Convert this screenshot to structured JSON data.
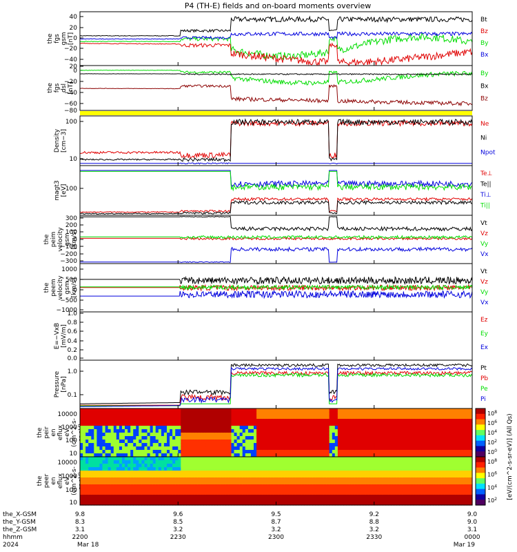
{
  "title": "P4 (TH-E) fields and on-board moments overview",
  "colors": {
    "black": "#000000",
    "red": "#e00000",
    "green": "#00dd00",
    "blue": "#0000dd",
    "darkred": "#8b0000",
    "yellow": "#ffff00"
  },
  "chart_data": {
    "type": "line",
    "time_range": [
      "2024-03-18 22:00",
      "2024-03-19 00:00"
    ],
    "x_ticks": [
      "2200",
      "2230",
      "2300",
      "2330",
      "0000"
    ],
    "date_labels": [
      "Mar 18",
      "Mar 19"
    ],
    "year": "2024",
    "ephemeris": {
      "rows": [
        {
          "label": "the_X-GSM",
          "values": [
            "9.8",
            "9.6",
            "9.5",
            "9.2",
            "9.0"
          ]
        },
        {
          "label": "the_Y-GSM",
          "values": [
            "8.3",
            "8.5",
            "8.7",
            "8.8",
            "9.0"
          ]
        },
        {
          "label": "the_Z-GSM",
          "values": [
            "3.1",
            "3.2",
            "3.2",
            "3.2",
            "3.1"
          ]
        },
        {
          "label": "hhmm",
          "values": [
            "2200",
            "2230",
            "2300",
            "2330",
            "0000"
          ]
        }
      ]
    },
    "panels": [
      {
        "id": "fgs-gsm",
        "ylabel_lines": [
          "the",
          "fgs",
          "gsm",
          "[nT]"
        ],
        "scale": "linear",
        "yrange": [
          -40,
          45
        ],
        "yticks": [
          "40",
          "20",
          "0",
          "−20",
          "−40"
        ],
        "legend": [
          {
            "name": "Bt",
            "color": "#000000"
          },
          {
            "name": "Bz",
            "color": "#e00000"
          },
          {
            "name": "By",
            "color": "#00dd00"
          },
          {
            "name": "Bx",
            "color": "#0000dd"
          }
        ]
      },
      {
        "id": "fgs-dsl",
        "ylabel_lines": [
          "the",
          "fgs",
          "dsl",
          "[nT]"
        ],
        "scale": "linear",
        "yrange": [
          -92,
          22
        ],
        "yticks": [
          "20",
          "0",
          "−20",
          "−40",
          "−60",
          "−80"
        ],
        "legend": [
          {
            "name": "By",
            "color": "#00dd00"
          },
          {
            "name": "Bx",
            "color": "#000000"
          },
          {
            "name": "Bz",
            "color": "#8b0000"
          }
        ]
      },
      {
        "id": "density",
        "ylabel_lines": [
          "Density",
          "[cm−3]"
        ],
        "scale": "log",
        "yrange": [
          8,
          110
        ],
        "yticks": [
          "100",
          "10"
        ],
        "legend": [
          {
            "name": "Ne",
            "color": "#e00000"
          },
          {
            "name": "Ni",
            "color": "#000000"
          },
          {
            "name": "Npot",
            "color": "#0000dd"
          }
        ]
      },
      {
        "id": "temperature",
        "ylabel_lines": [
          "magt3",
          "[eV]"
        ],
        "scale": "log",
        "yrange": [
          30,
          500
        ],
        "yticks": [
          "100"
        ],
        "legend": [
          {
            "name": "Te⊥",
            "color": "#e00000"
          },
          {
            "name": "Te||",
            "color": "#000000"
          },
          {
            "name": "Ti⊥",
            "color": "#0000dd"
          },
          {
            "name": "Ti||",
            "color": "#00dd00"
          }
        ]
      },
      {
        "id": "peim-velocity",
        "ylabel_lines": [
          "the",
          "peim",
          "velocity",
          "gsm",
          "[km/s]"
        ],
        "scale": "linear",
        "yrange": [
          -320,
          320
        ],
        "yticks": [
          "300",
          "200",
          "100",
          "0",
          "−100",
          "−200",
          "−300"
        ],
        "legend": [
          {
            "name": "Vt",
            "color": "#000000"
          },
          {
            "name": "Vz",
            "color": "#e00000"
          },
          {
            "name": "Vy",
            "color": "#00dd00"
          },
          {
            "name": "Vx",
            "color": "#0000dd"
          }
        ]
      },
      {
        "id": "peem-velocity",
        "ylabel_lines": [
          "the",
          "peem",
          "velocity",
          "gsm",
          "[km/s]"
        ],
        "scale": "linear",
        "yrange": [
          -1100,
          1100
        ],
        "yticks": [
          "1000",
          "500",
          "0",
          "−500",
          "−1000"
        ],
        "legend": [
          {
            "name": "Vt",
            "color": "#000000"
          },
          {
            "name": "Vz",
            "color": "#e00000"
          },
          {
            "name": "Vy",
            "color": "#00dd00"
          },
          {
            "name": "Vx",
            "color": "#0000dd"
          }
        ]
      },
      {
        "id": "efield",
        "ylabel_lines": [
          "E=−VxB",
          "[mV/m]"
        ],
        "scale": "linear",
        "yrange": [
          0,
          1
        ],
        "yticks": [
          "1.0",
          "0.8",
          "0.6",
          "0.4",
          "0.2",
          "0.0"
        ],
        "legend": [
          {
            "name": "Ez",
            "color": "#e00000"
          },
          {
            "name": "Ey",
            "color": "#00dd00"
          },
          {
            "name": "Ex",
            "color": "#0000dd"
          }
        ]
      },
      {
        "id": "pressure",
        "ylabel_lines": [
          "Pressure",
          "[nPa]"
        ],
        "scale": "log",
        "yrange": [
          0.03,
          2
        ],
        "yticks": [
          "1.0",
          "0.1"
        ],
        "legend": [
          {
            "name": "Pt",
            "color": "#000000"
          },
          {
            "name": "Pb",
            "color": "#e00000"
          },
          {
            "name": "Pe",
            "color": "#00dd00"
          },
          {
            "name": "Pi",
            "color": "#0000dd"
          }
        ]
      },
      {
        "id": "peir-spectrogram",
        "ylabel_lines": [
          "the",
          "peir",
          "en",
          "eflux",
          "eV",
          "(cm^2-s-",
          "sr-eV)"
        ],
        "type": "heatmap",
        "yticks": [
          "10000",
          "1000",
          "100",
          "10"
        ]
      },
      {
        "id": "peer-spectrogram",
        "ylabel_lines": [
          "the",
          "peer",
          "en",
          "eflux",
          "eV",
          "(cm^2-s-",
          "sr-eV)"
        ],
        "type": "heatmap",
        "yticks": [
          "10000",
          "1000",
          "100",
          "10"
        ]
      }
    ],
    "colorbar": {
      "label": "[eV/(cm^2-s-sr-eV)] (All Qs)",
      "ticks_top": [
        "10^8",
        "10^6",
        "10^4",
        "10^2",
        "10^0"
      ],
      "ticks_bottom": [
        "10^8",
        "10^6",
        "10^4",
        "10^2"
      ]
    }
  }
}
